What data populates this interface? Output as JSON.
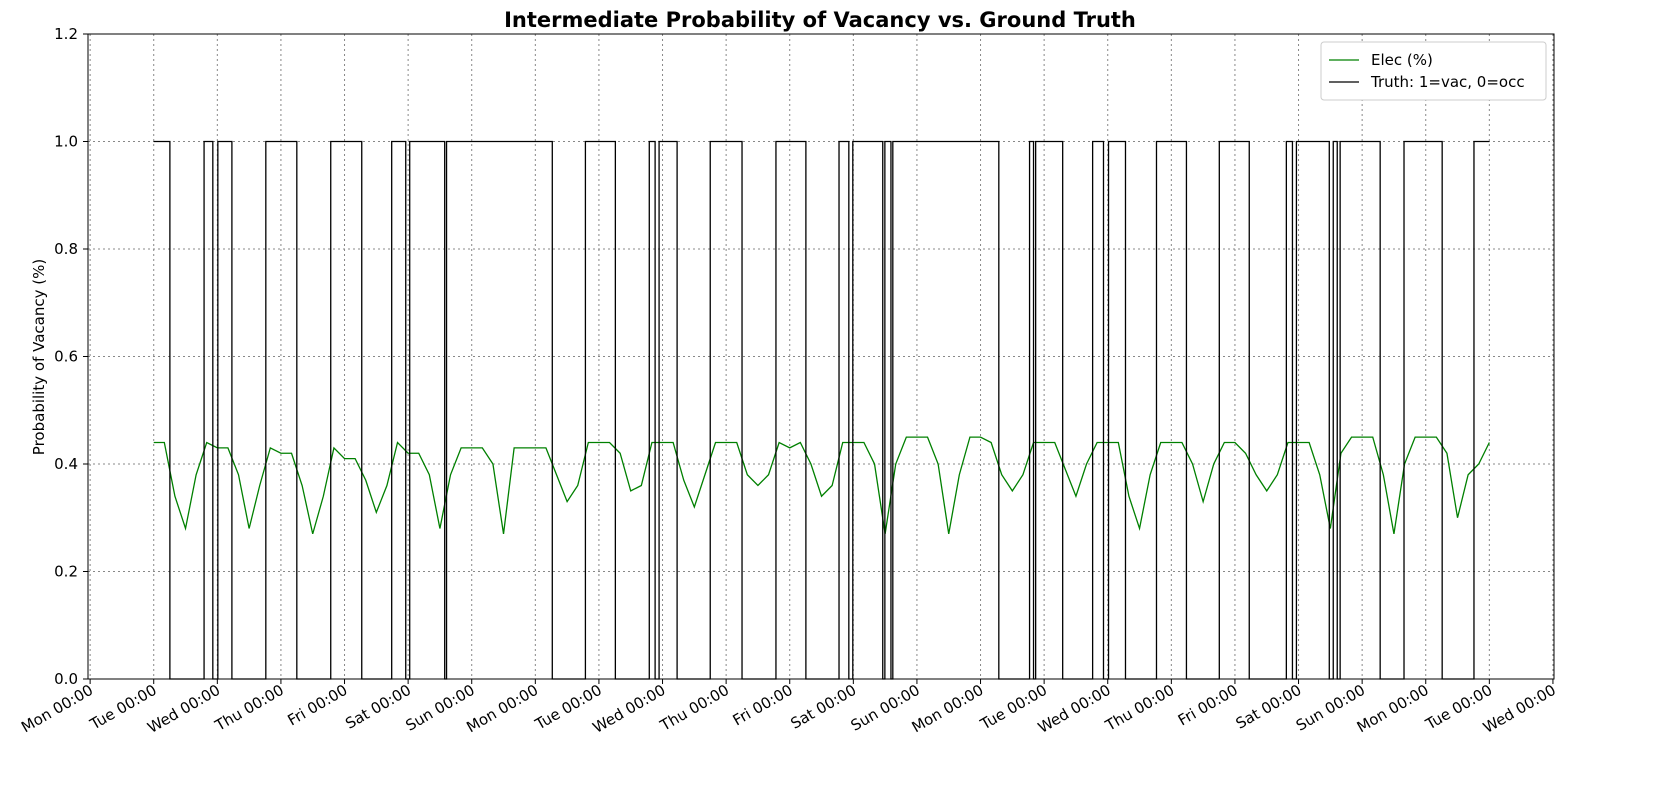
{
  "chart_data": {
    "type": "line",
    "title": "Intermediate Probability of Vacancy vs. Ground Truth",
    "ylabel": "Probability of Vacancy (%)",
    "xlim": [
      -0.8,
      552.4
    ],
    "xticks": [
      {
        "value": 0,
        "label": "Mon 00:00"
      },
      {
        "value": 24,
        "label": "Tue 00:00"
      },
      {
        "value": 48,
        "label": "Wed 00:00"
      },
      {
        "value": 72,
        "label": "Thu 00:00"
      },
      {
        "value": 96,
        "label": "Fri 00:00"
      },
      {
        "value": 120,
        "label": "Sat 00:00"
      },
      {
        "value": 144,
        "label": "Sun 00:00"
      },
      {
        "value": 168,
        "label": "Mon 00:00"
      },
      {
        "value": 192,
        "label": "Tue 00:00"
      },
      {
        "value": 216,
        "label": "Wed 00:00"
      },
      {
        "value": 240,
        "label": "Thu 00:00"
      },
      {
        "value": 264,
        "label": "Fri 00:00"
      },
      {
        "value": 288,
        "label": "Sat 00:00"
      },
      {
        "value": 312,
        "label": "Sun 00:00"
      },
      {
        "value": 336,
        "label": "Mon 00:00"
      },
      {
        "value": 360,
        "label": "Tue 00:00"
      },
      {
        "value": 384,
        "label": "Wed 00:00"
      },
      {
        "value": 408,
        "label": "Thu 00:00"
      },
      {
        "value": 432,
        "label": "Fri 00:00"
      },
      {
        "value": 456,
        "label": "Sat 00:00"
      },
      {
        "value": 480,
        "label": "Sun 00:00"
      },
      {
        "value": 504,
        "label": "Mon 00:00"
      },
      {
        "value": 528,
        "label": "Tue 00:00"
      },
      {
        "value": 552,
        "label": "Wed 00:00"
      }
    ],
    "ylim": [
      0,
      1.2
    ],
    "yticks": [
      {
        "value": 0,
        "label": "0.0"
      },
      0.2,
      0.4,
      0.6,
      0.8,
      {
        "value": 1,
        "label": "1.0"
      },
      1.2
    ],
    "grid": true,
    "legend": "upper right",
    "series": [
      {
        "name": "Elec (%)",
        "color": "#008000",
        "x": [
          24,
          28,
          32,
          36,
          40,
          44,
          48,
          52,
          56,
          60,
          64,
          68,
          72,
          76,
          80,
          84,
          88,
          92,
          96,
          100,
          104,
          108,
          112,
          116,
          120,
          124,
          128,
          132,
          136,
          140,
          144,
          148,
          152,
          156,
          160,
          164,
          168,
          172,
          176,
          180,
          184,
          188,
          192,
          196,
          200,
          204,
          208,
          212,
          216,
          220,
          224,
          228,
          232,
          236,
          240,
          244,
          248,
          252,
          256,
          260,
          264,
          268,
          272,
          276,
          280,
          284,
          288,
          292,
          296,
          300,
          304,
          308,
          312,
          316,
          320,
          324,
          328,
          332,
          336,
          340,
          344,
          348,
          352,
          356,
          360,
          364,
          368,
          372,
          376,
          380,
          384,
          388,
          392,
          396,
          400,
          404,
          408,
          412,
          416,
          420,
          424,
          428,
          432,
          436,
          440,
          444,
          448,
          452,
          456,
          460,
          464,
          468,
          472,
          476,
          480,
          484,
          488,
          492,
          496,
          500,
          504,
          508,
          512,
          516,
          520,
          524,
          528
        ],
        "values": [
          0.44,
          0.44,
          0.34,
          0.28,
          0.38,
          0.44,
          0.43,
          0.43,
          0.38,
          0.28,
          0.36,
          0.43,
          0.42,
          0.42,
          0.36,
          0.27,
          0.34,
          0.43,
          0.41,
          0.41,
          0.37,
          0.31,
          0.36,
          0.44,
          0.42,
          0.42,
          0.38,
          0.28,
          0.38,
          0.43,
          0.43,
          0.43,
          0.4,
          0.27,
          0.43,
          0.43,
          0.43,
          0.43,
          0.38,
          0.33,
          0.36,
          0.44,
          0.44,
          0.44,
          0.42,
          0.35,
          0.36,
          0.44,
          0.44,
          0.44,
          0.37,
          0.32,
          0.38,
          0.44,
          0.44,
          0.44,
          0.38,
          0.36,
          0.38,
          0.44,
          0.43,
          0.44,
          0.4,
          0.34,
          0.36,
          0.44,
          0.44,
          0.44,
          0.4,
          0.27,
          0.4,
          0.45,
          0.45,
          0.45,
          0.4,
          0.27,
          0.38,
          0.45,
          0.45,
          0.44,
          0.38,
          0.35,
          0.38,
          0.44,
          0.44,
          0.44,
          0.39,
          0.34,
          0.4,
          0.44,
          0.44,
          0.44,
          0.34,
          0.28,
          0.38,
          0.44,
          0.44,
          0.44,
          0.4,
          0.33,
          0.4,
          0.44,
          0.44,
          0.42,
          0.38,
          0.35,
          0.38,
          0.44,
          0.44,
          0.44,
          0.38,
          0.28,
          0.42,
          0.45,
          0.45,
          0.45,
          0.38,
          0.27,
          0.4,
          0.45,
          0.45,
          0.45,
          0.42,
          0.3,
          0.38,
          0.4,
          0.44
        ]
      },
      {
        "name": "Truth: 1=vac, 0=occ",
        "color": "#000000",
        "x": [
          24,
          30.1,
          30.1,
          43,
          43,
          46.3,
          46.3,
          48.2,
          48.2,
          53.5,
          53.5,
          66.3,
          66.3,
          78,
          78,
          90.8,
          90.8,
          102.5,
          102.5,
          113.8,
          113.8,
          119.1,
          119.1,
          120.6,
          120.6,
          133.8,
          133.8,
          134.5,
          134.5,
          174.4,
          174.4,
          186.9,
          186.9,
          198.2,
          198.2,
          211,
          211,
          213.2,
          213.2,
          214.7,
          214.7,
          221.5,
          221.5,
          234,
          234,
          246,
          246,
          258.8,
          258.8,
          270.1,
          270.1,
          282.6,
          282.6,
          286.3,
          286.3,
          287.8,
          287.8,
          299.1,
          299.1,
          299.9,
          299.9,
          302.2,
          302.2,
          302.9,
          302.9,
          342.9,
          342.9,
          354.5,
          354.5,
          356,
          356,
          356.8,
          356.8,
          367,
          367,
          378.3,
          378.3,
          382.4,
          382.4,
          384.3,
          384.3,
          390.7,
          390.7,
          402.4,
          402.4,
          413.7,
          413.7,
          426.1,
          426.1,
          437.4,
          437.4,
          451.4,
          451.4,
          453.7,
          453.7,
          455.2,
          455.2,
          467.6,
          467.6,
          469.1,
          469.1,
          470.6,
          470.6,
          471.7,
          471.7,
          486.8,
          486.8,
          495.8,
          495.8,
          510.2,
          510.2,
          522.2,
          522.2,
          528
        ],
        "values": [
          1,
          1,
          0,
          0,
          1,
          1,
          0,
          0,
          1,
          1,
          0,
          0,
          1,
          1,
          0,
          0,
          1,
          1,
          0,
          0,
          1,
          1,
          0,
          0,
          1,
          1,
          0,
          0,
          1,
          1,
          0,
          0,
          1,
          1,
          0,
          0,
          1,
          1,
          0,
          0,
          1,
          1,
          0,
          0,
          1,
          1,
          0,
          0,
          1,
          1,
          0,
          0,
          1,
          1,
          0,
          0,
          1,
          1,
          0,
          0,
          1,
          1,
          0,
          0,
          1,
          1,
          0,
          0,
          1,
          1,
          0,
          0,
          1,
          1,
          0,
          0,
          1,
          1,
          0,
          0,
          1,
          1,
          0,
          0,
          1,
          1,
          0,
          0,
          1,
          1,
          0,
          0,
          1,
          1,
          0,
          0,
          1,
          1,
          0,
          0,
          1,
          1,
          0,
          0,
          1,
          1,
          0,
          0,
          1,
          1,
          0,
          0,
          1,
          1
        ]
      }
    ]
  }
}
